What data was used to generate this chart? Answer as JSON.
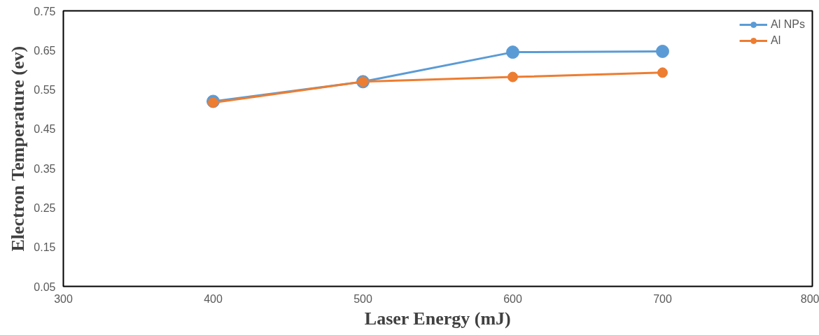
{
  "chart_data": {
    "type": "line",
    "xlabel": "Laser Energy (mJ)",
    "ylabel": "Electron Temperature (ev)",
    "x": [
      400,
      500,
      600,
      700
    ],
    "series": [
      {
        "name": "Al NPs",
        "color": "#5b9bd5",
        "values": [
          0.52,
          0.57,
          0.645,
          0.647
        ]
      },
      {
        "name": "Al",
        "color": "#ed7d31",
        "values": [
          0.517,
          0.57,
          0.582,
          0.593
        ]
      }
    ],
    "xlim": [
      300,
      800
    ],
    "xticks": [
      300,
      400,
      500,
      600,
      700,
      800
    ],
    "ylim": [
      0.05,
      0.75
    ],
    "yticks": [
      {
        "value": 0.05,
        "label": "0.05"
      },
      {
        "value": 0.15,
        "label": "0.15"
      },
      {
        "value": 0.25,
        "label": "0.25"
      },
      {
        "value": 0.35,
        "label": "0.35"
      },
      {
        "value": 0.45,
        "label": "0.45"
      },
      {
        "value": 0.55,
        "label": "0.55"
      },
      {
        "value": 0.65,
        "label": "0.65"
      },
      {
        "value": 0.75,
        "label": "0.75"
      }
    ],
    "grid": false,
    "legend": "top right",
    "marker": "circle",
    "line_style": "solid"
  }
}
